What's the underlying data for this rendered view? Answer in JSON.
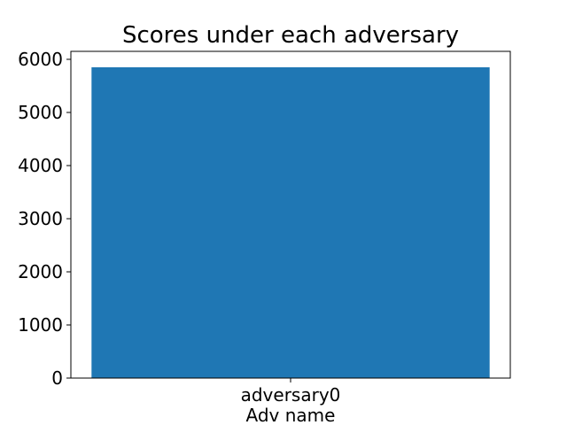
{
  "chart_data": {
    "type": "bar",
    "title": "Scores under each adversary",
    "xlabel": "Adv name",
    "ylabel": "",
    "categories": [
      "adversary0"
    ],
    "values": [
      5850
    ],
    "ylim": [
      0,
      6150
    ],
    "yticks": [
      0,
      1000,
      2000,
      3000,
      4000,
      5000,
      6000
    ],
    "bar_color": "#1f77b4",
    "grid": false,
    "legend": "none"
  }
}
